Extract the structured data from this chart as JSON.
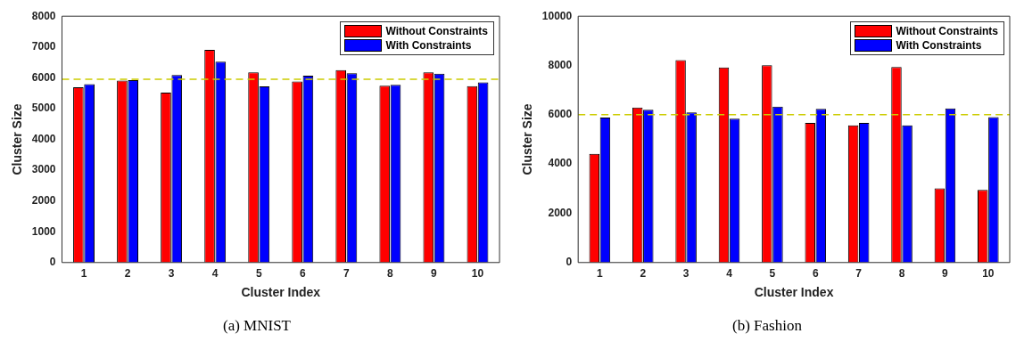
{
  "chart_data": [
    {
      "type": "bar",
      "xlabel": "Cluster Index",
      "ylabel": "Cluster Size",
      "categories": [
        "1",
        "2",
        "3",
        "4",
        "5",
        "6",
        "7",
        "8",
        "9",
        "10"
      ],
      "series": [
        {
          "name": "Without Constraints",
          "color": "#ff0000",
          "values": [
            5690,
            5910,
            5520,
            6910,
            6180,
            5880,
            6250,
            5740,
            6180,
            5730
          ]
        },
        {
          "name": "With Constraints",
          "color": "#0000ff",
          "values": [
            5790,
            5920,
            6090,
            6520,
            5720,
            6070,
            6150,
            5770,
            6130,
            5850
          ]
        }
      ],
      "ylim": [
        0,
        8000
      ],
      "yticks": [
        0,
        1000,
        2000,
        3000,
        4000,
        5000,
        6000,
        7000,
        8000
      ],
      "legend": "top right",
      "ref_lines": [
        {
          "axis": "y",
          "value": 5950,
          "color": "#cccc00",
          "line_style": "dashed"
        }
      ],
      "annotations": [
        "(a) MNIST"
      ]
    },
    {
      "type": "bar",
      "xlabel": "Cluster Index",
      "ylabel": "Cluster Size",
      "categories": [
        "1",
        "2",
        "3",
        "4",
        "5",
        "6",
        "7",
        "8",
        "9",
        "10"
      ],
      "series": [
        {
          "name": "Without Constraints",
          "color": "#ff0000",
          "values": [
            4410,
            6290,
            8220,
            7920,
            8010,
            5670,
            5570,
            7940,
            3010,
            2950
          ]
        },
        {
          "name": "With Constraints",
          "color": "#0000ff",
          "values": [
            5890,
            6200,
            6090,
            5840,
            6330,
            6240,
            5670,
            5570,
            6260,
            5900
          ]
        }
      ],
      "ylim": [
        0,
        10000
      ],
      "yticks": [
        0,
        2000,
        4000,
        6000,
        8000,
        10000
      ],
      "legend": "top right",
      "ref_lines": [
        {
          "axis": "y",
          "value": 6000,
          "color": "#cccc00",
          "line_style": "dashed"
        }
      ],
      "annotations": [
        "(b) Fashion"
      ]
    }
  ]
}
